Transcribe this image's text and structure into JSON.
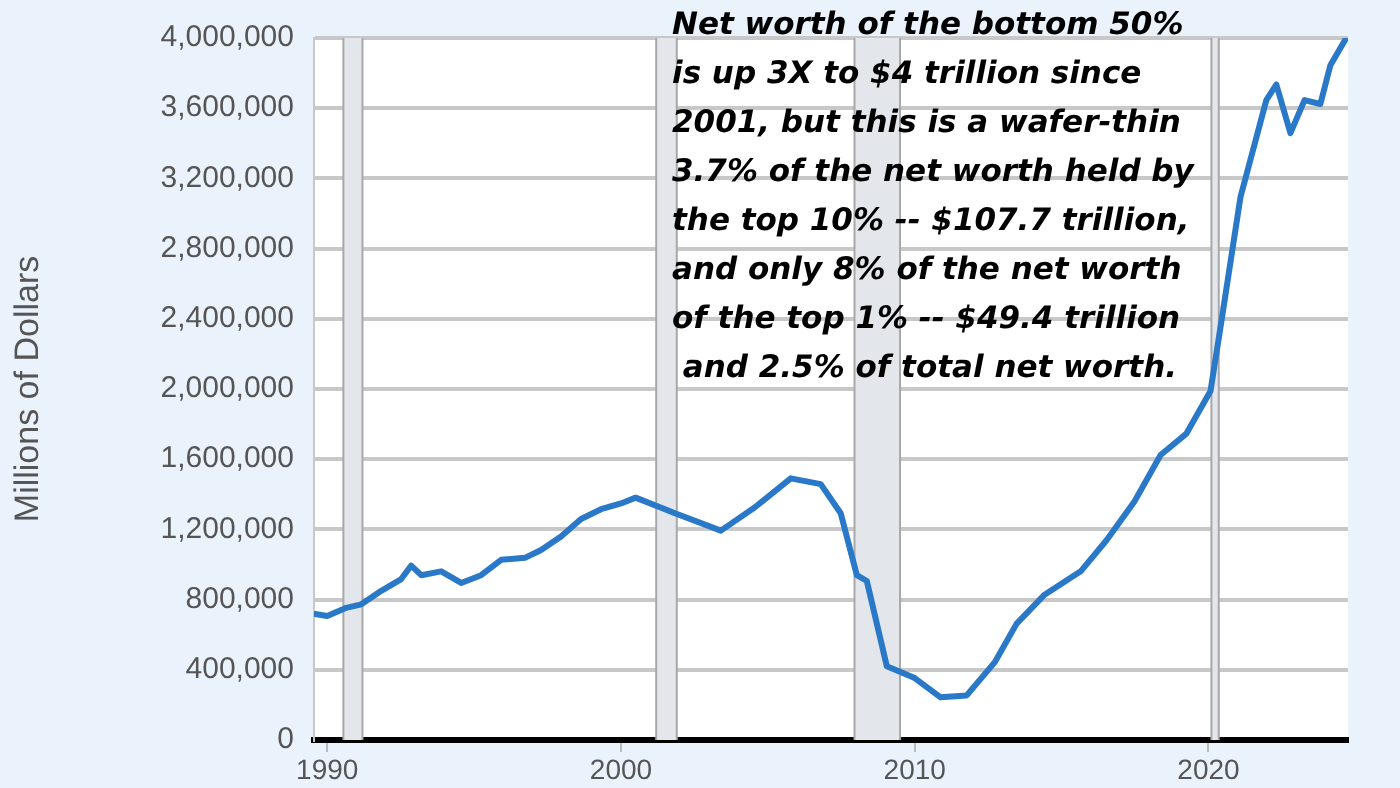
{
  "chart_data": {
    "type": "line",
    "ylabel": "Millions of Dollars",
    "annotations": [
      "Net worth of the bottom 50%\nis up 3X to $4 trillion since\n2001, but this is a wafer-thin\n3.7% of the net worth held by\nthe top 10% -- $107.7 trillion,\nand only 8% of the net worth\nof the top 1% -- $49.4 trillion\n and 2.5% of total net worth."
    ],
    "x": [
      1989.59,
      1990.0,
      1990.61,
      1991.16,
      1991.84,
      1992.52,
      1992.86,
      1993.2,
      1993.88,
      1994.56,
      1995.24,
      1995.92,
      1996.73,
      1997.28,
      1997.96,
      1998.64,
      1999.32,
      2000.0,
      2000.5,
      2001.84,
      2003.4,
      2004.56,
      2005.78,
      2006.8,
      2007.48,
      2008.03,
      2008.37,
      2009.05,
      2010.0,
      2010.88,
      2011.77,
      2012.72,
      2013.47,
      2014.42,
      2015.65,
      2016.53,
      2017.48,
      2018.37,
      2019.25,
      2020.07,
      2020.41,
      2021.09,
      2021.97,
      2022.31,
      2022.79,
      2023.27,
      2023.81,
      2024.15,
      2024.69
    ],
    "series": [
      {
        "color": "#2a78c8",
        "values": [
          718000,
          707000,
          751000,
          773000,
          850000,
          917000,
          994000,
          939000,
          961000,
          895000,
          939000,
          1027000,
          1038000,
          1083000,
          1160000,
          1259000,
          1315000,
          1348000,
          1381000,
          1292000,
          1193000,
          1326000,
          1491000,
          1458000,
          1292000,
          939000,
          906000,
          420000,
          353000,
          243000,
          254000,
          442000,
          663000,
          828000,
          961000,
          1138000,
          1359000,
          1624000,
          1746000,
          1989000,
          2353000,
          3094000,
          3646000,
          3735000,
          3458000,
          3646000,
          3624000,
          3845000,
          4000000
        ]
      }
    ],
    "bands": [
      {
        "axis": "x",
        "from": 1990.55,
        "to": 1991.2,
        "color": "#e3e7ec"
      },
      {
        "axis": "x",
        "from": 2001.2,
        "to": 2001.9,
        "color": "#e3e7ec"
      },
      {
        "axis": "x",
        "from": 2007.95,
        "to": 2009.5,
        "color": "#e3e7ec"
      },
      {
        "axis": "x",
        "from": 2020.1,
        "to": 2020.35,
        "color": "#e3e7ec"
      }
    ],
    "xlim": [
      1989.55,
      2024.75
    ],
    "xticks": [
      1990,
      2000,
      2010,
      2020
    ],
    "ylim": [
      0,
      4000000
    ],
    "yticks": [
      0,
      {
        "value": 400000,
        "label": "400,000"
      },
      {
        "value": 800000,
        "label": "800,000"
      },
      {
        "value": 1200000,
        "label": "1,200,000"
      },
      {
        "value": 1600000,
        "label": "1,600,000"
      },
      {
        "value": 2000000,
        "label": "2,000,000"
      },
      {
        "value": 2400000,
        "label": "2,400,000"
      },
      {
        "value": 2800000,
        "label": "2,800,000"
      },
      {
        "value": 3200000,
        "label": "3,200,000"
      },
      {
        "value": 3600000,
        "label": "3,600,000"
      },
      {
        "value": 4000000,
        "label": "4,000,000"
      }
    ],
    "grid": "y",
    "legend": false,
    "marker": "none",
    "line_style": "solid"
  }
}
